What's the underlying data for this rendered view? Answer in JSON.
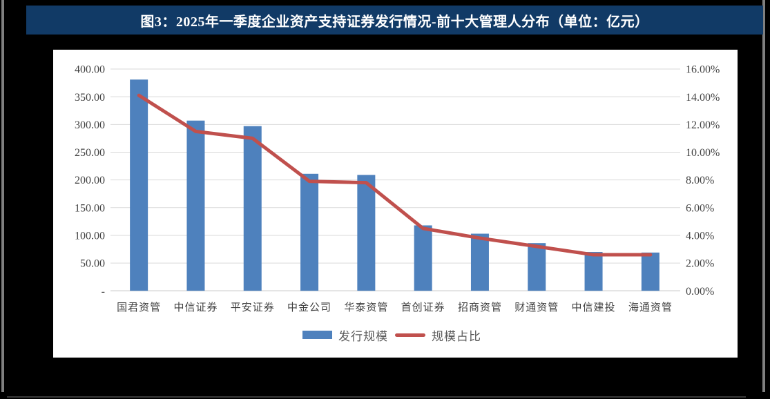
{
  "page": {
    "background_color": "#000000",
    "side_line_color": "#7f7f7f"
  },
  "header": {
    "title": "图3：2025年一季度企业资产支持证券发行情况-前十大管理人分布（单位：亿元）",
    "background_color": "#113A66",
    "text_color": "#FFFFFF"
  },
  "chart_data": {
    "type": "bar",
    "subtype": "combo-bar-line-dual-axis",
    "categories": [
      "国君资管",
      "中信证券",
      "平安证券",
      "中金公司",
      "华泰资管",
      "首创证券",
      "招商资管",
      "财通资管",
      "中信建投",
      "海通资管"
    ],
    "series": [
      {
        "name": "发行规模",
        "type": "bar",
        "axis": "left",
        "color": "#4E81BD",
        "values": [
          381,
          307,
          297,
          211,
          209,
          118,
          103,
          86,
          70,
          69
        ]
      },
      {
        "name": "规模占比",
        "type": "line",
        "axis": "right",
        "color": "#C0504D",
        "values": [
          14.1,
          11.5,
          11.0,
          7.9,
          7.8,
          4.5,
          3.8,
          3.2,
          2.6,
          2.6
        ]
      }
    ],
    "left_axis": {
      "tick_labels": [
        "400.00",
        "350.00",
        "300.00",
        "250.00",
        "200.00",
        "150.00",
        "100.00",
        "50.00",
        "-"
      ],
      "min": 0,
      "max": 400
    },
    "right_axis": {
      "tick_labels": [
        "16.00%",
        "14.00%",
        "12.00%",
        "10.00%",
        "8.00%",
        "6.00%",
        "4.00%",
        "2.00%",
        "0.00%"
      ],
      "min": 0,
      "max": 16
    },
    "grid": true,
    "grid_color": "#D9D9D9",
    "baseline_color": "#BFBFBF",
    "axis_text_color": "#404040",
    "legend_position": "bottom"
  }
}
